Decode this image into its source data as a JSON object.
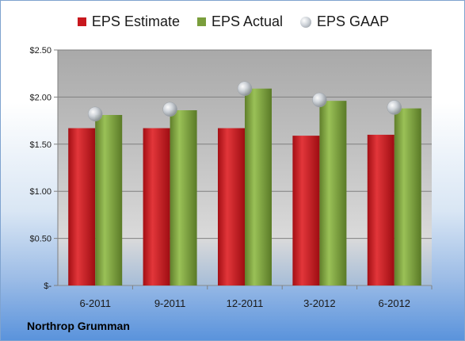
{
  "chart_data": {
    "type": "bar",
    "categories": [
      "6-2011",
      "9-2011",
      "12-2011",
      "3-2012",
      "6-2012"
    ],
    "series": [
      {
        "name": "EPS Estimate",
        "values": [
          1.67,
          1.67,
          1.67,
          1.59,
          1.6
        ],
        "color": "#c8181e",
        "kind": "bar"
      },
      {
        "name": "EPS Actual",
        "values": [
          1.81,
          1.86,
          2.09,
          1.96,
          1.88
        ],
        "color": "#7a9e3c",
        "kind": "bar"
      },
      {
        "name": "EPS GAAP",
        "values": [
          1.82,
          1.87,
          2.09,
          1.97,
          1.89
        ],
        "color": "#b9bfc6",
        "kind": "marker"
      }
    ],
    "yticks": [
      "$-",
      "$0.50",
      "$1.00",
      "$1.50",
      "$2.00",
      "$2.50"
    ],
    "ylim": [
      0,
      2.5
    ],
    "grid": true,
    "legend": "top"
  },
  "company_label": "Northrop Grumman"
}
